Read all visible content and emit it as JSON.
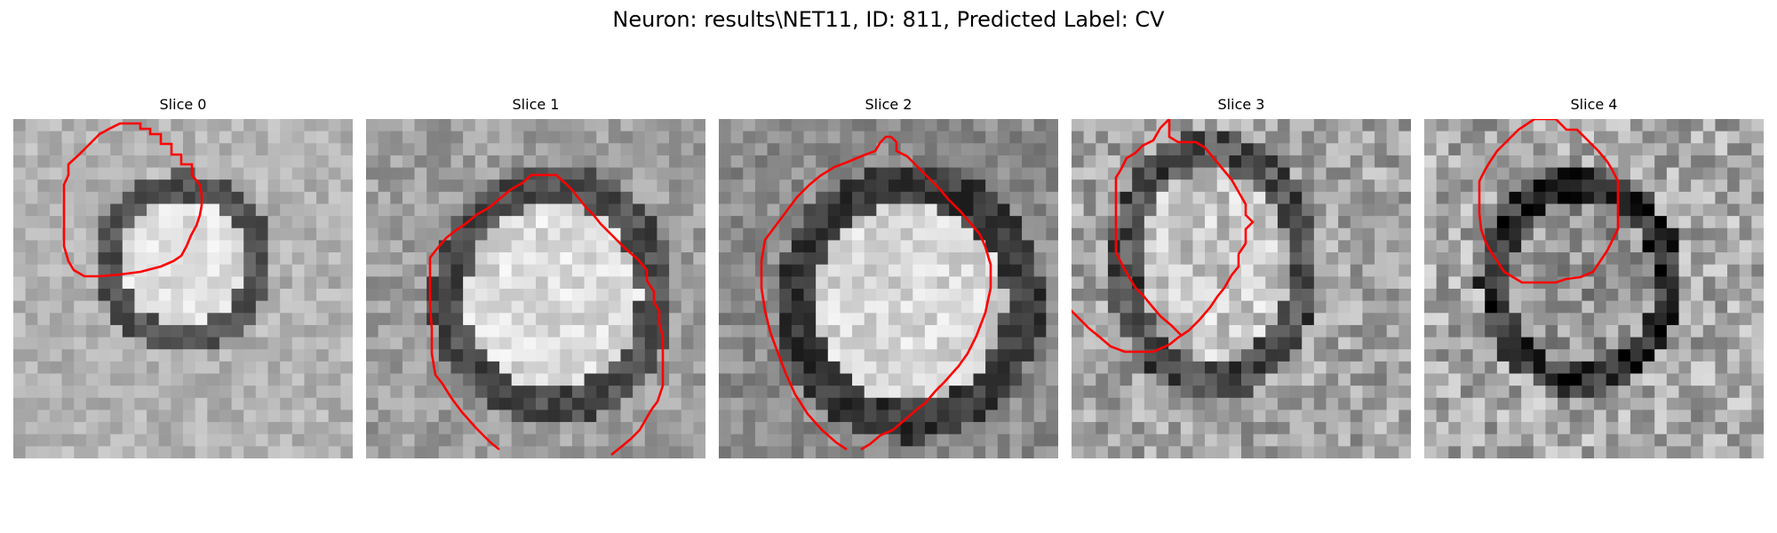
{
  "figure": {
    "title": "Neuron: results\\NET11, ID: 811, Predicted Label: CV"
  },
  "panels": [
    {
      "title": "Slice 0"
    },
    {
      "title": "Slice 1"
    },
    {
      "title": "Slice 2"
    },
    {
      "title": "Slice 3"
    },
    {
      "title": "Slice 4"
    }
  ],
  "colors": {
    "contour": "#ff0000",
    "background": "#ffffff"
  }
}
